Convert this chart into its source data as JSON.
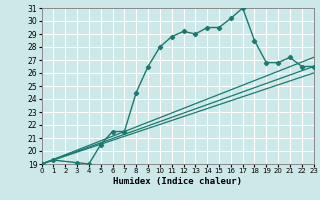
{
  "xlabel": "Humidex (Indice chaleur)",
  "bg_color": "#cce8e8",
  "grid_color": "#ffffff",
  "line_color": "#1a7a6e",
  "ylim": [
    19,
    31
  ],
  "xlim": [
    0,
    23
  ],
  "yticks": [
    19,
    20,
    21,
    22,
    23,
    24,
    25,
    26,
    27,
    28,
    29,
    30,
    31
  ],
  "xticks": [
    0,
    1,
    2,
    3,
    4,
    5,
    6,
    7,
    8,
    9,
    10,
    11,
    12,
    13,
    14,
    15,
    16,
    17,
    18,
    19,
    20,
    21,
    22,
    23
  ],
  "curve1_x": [
    0,
    1,
    3,
    4,
    5,
    6,
    7,
    8,
    9,
    10,
    11,
    12,
    13,
    14,
    15,
    16,
    17,
    18,
    19,
    20,
    21,
    22,
    23
  ],
  "curve1_y": [
    19.0,
    19.3,
    19.1,
    19.0,
    20.5,
    21.5,
    21.5,
    24.5,
    26.5,
    28.0,
    28.8,
    29.2,
    29.0,
    29.5,
    29.5,
    30.2,
    31.0,
    28.5,
    26.8,
    26.8,
    27.2,
    26.5,
    26.5
  ],
  "line2_x": [
    0,
    23
  ],
  "line2_y": [
    19.0,
    26.5
  ],
  "line3_x": [
    0,
    23
  ],
  "line3_y": [
    19.0,
    27.2
  ],
  "line4_x": [
    0,
    23
  ],
  "line4_y": [
    19.0,
    26.0
  ]
}
